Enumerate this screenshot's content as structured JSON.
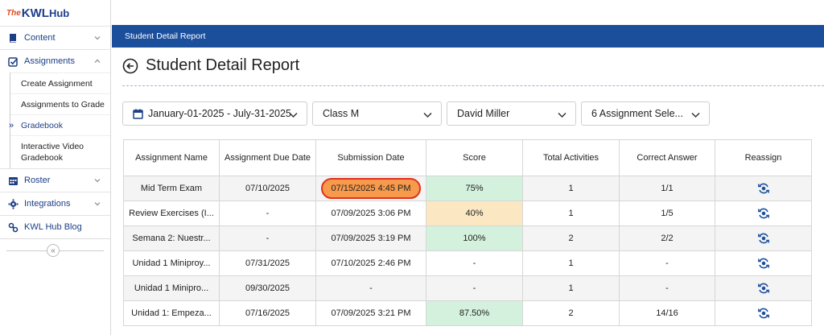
{
  "logo": {
    "the": "The",
    "kwl": "KWL",
    "hub": "Hub"
  },
  "sidebar": {
    "content": "Content",
    "assignments": "Assignments",
    "sub": [
      "Create Assignment",
      "Assignments to Grade",
      "Gradebook",
      "Interactive Video Gradebook"
    ],
    "active_marker": "»",
    "roster": "Roster",
    "integrations": "Integrations",
    "blog": "KWL Hub Blog",
    "collapse": "«"
  },
  "header": {
    "band_title": "Student Detail Report",
    "page_title": "Student Detail Report"
  },
  "filters": {
    "date_range": "January-01-2025 - July-31-2025",
    "class": "Class M",
    "student": "David Miller",
    "assignments": "6 Assignment Sele..."
  },
  "table": {
    "headers": [
      "Assignment Name",
      "Assignment Due Date",
      "Submission Date",
      "Score",
      "Total Activities",
      "Correct Answer",
      "Reassign"
    ],
    "rows": [
      {
        "name": "Mid Term Exam",
        "due": "07/10/2025",
        "submitted": "07/15/2025 4:45 PM",
        "score": "75%",
        "total": "1",
        "correct": "1/1"
      },
      {
        "name": "Review Exercises (I...",
        "due": "-",
        "submitted": "07/09/2025 3:06 PM",
        "score": "40%",
        "total": "1",
        "correct": "1/5"
      },
      {
        "name": "Semana 2: Nuestr...",
        "due": "-",
        "submitted": "07/09/2025 3:19 PM",
        "score": "100%",
        "total": "2",
        "correct": "2/2"
      },
      {
        "name": "Unidad 1 Miniproy...",
        "due": "07/31/2025",
        "submitted": "07/10/2025 2:46 PM",
        "score": "-",
        "total": "1",
        "correct": "-"
      },
      {
        "name": "Unidad 1 Miniprо...",
        "due": "09/30/2025",
        "submitted": "-",
        "score": "-",
        "total": "1",
        "correct": "-"
      },
      {
        "name": "Unidad 1: Empeza...",
        "due": "07/16/2025",
        "submitted": "07/09/2025 3:21 PM",
        "score": "87.50%",
        "total": "2",
        "correct": "14/16"
      }
    ]
  },
  "colors": {
    "primary": "#1b4f9c",
    "score_good": "#d3f1dc",
    "score_mid": "#fbe8c3",
    "highlight": "#f79a4c",
    "highlight_border": "#e0321e"
  }
}
